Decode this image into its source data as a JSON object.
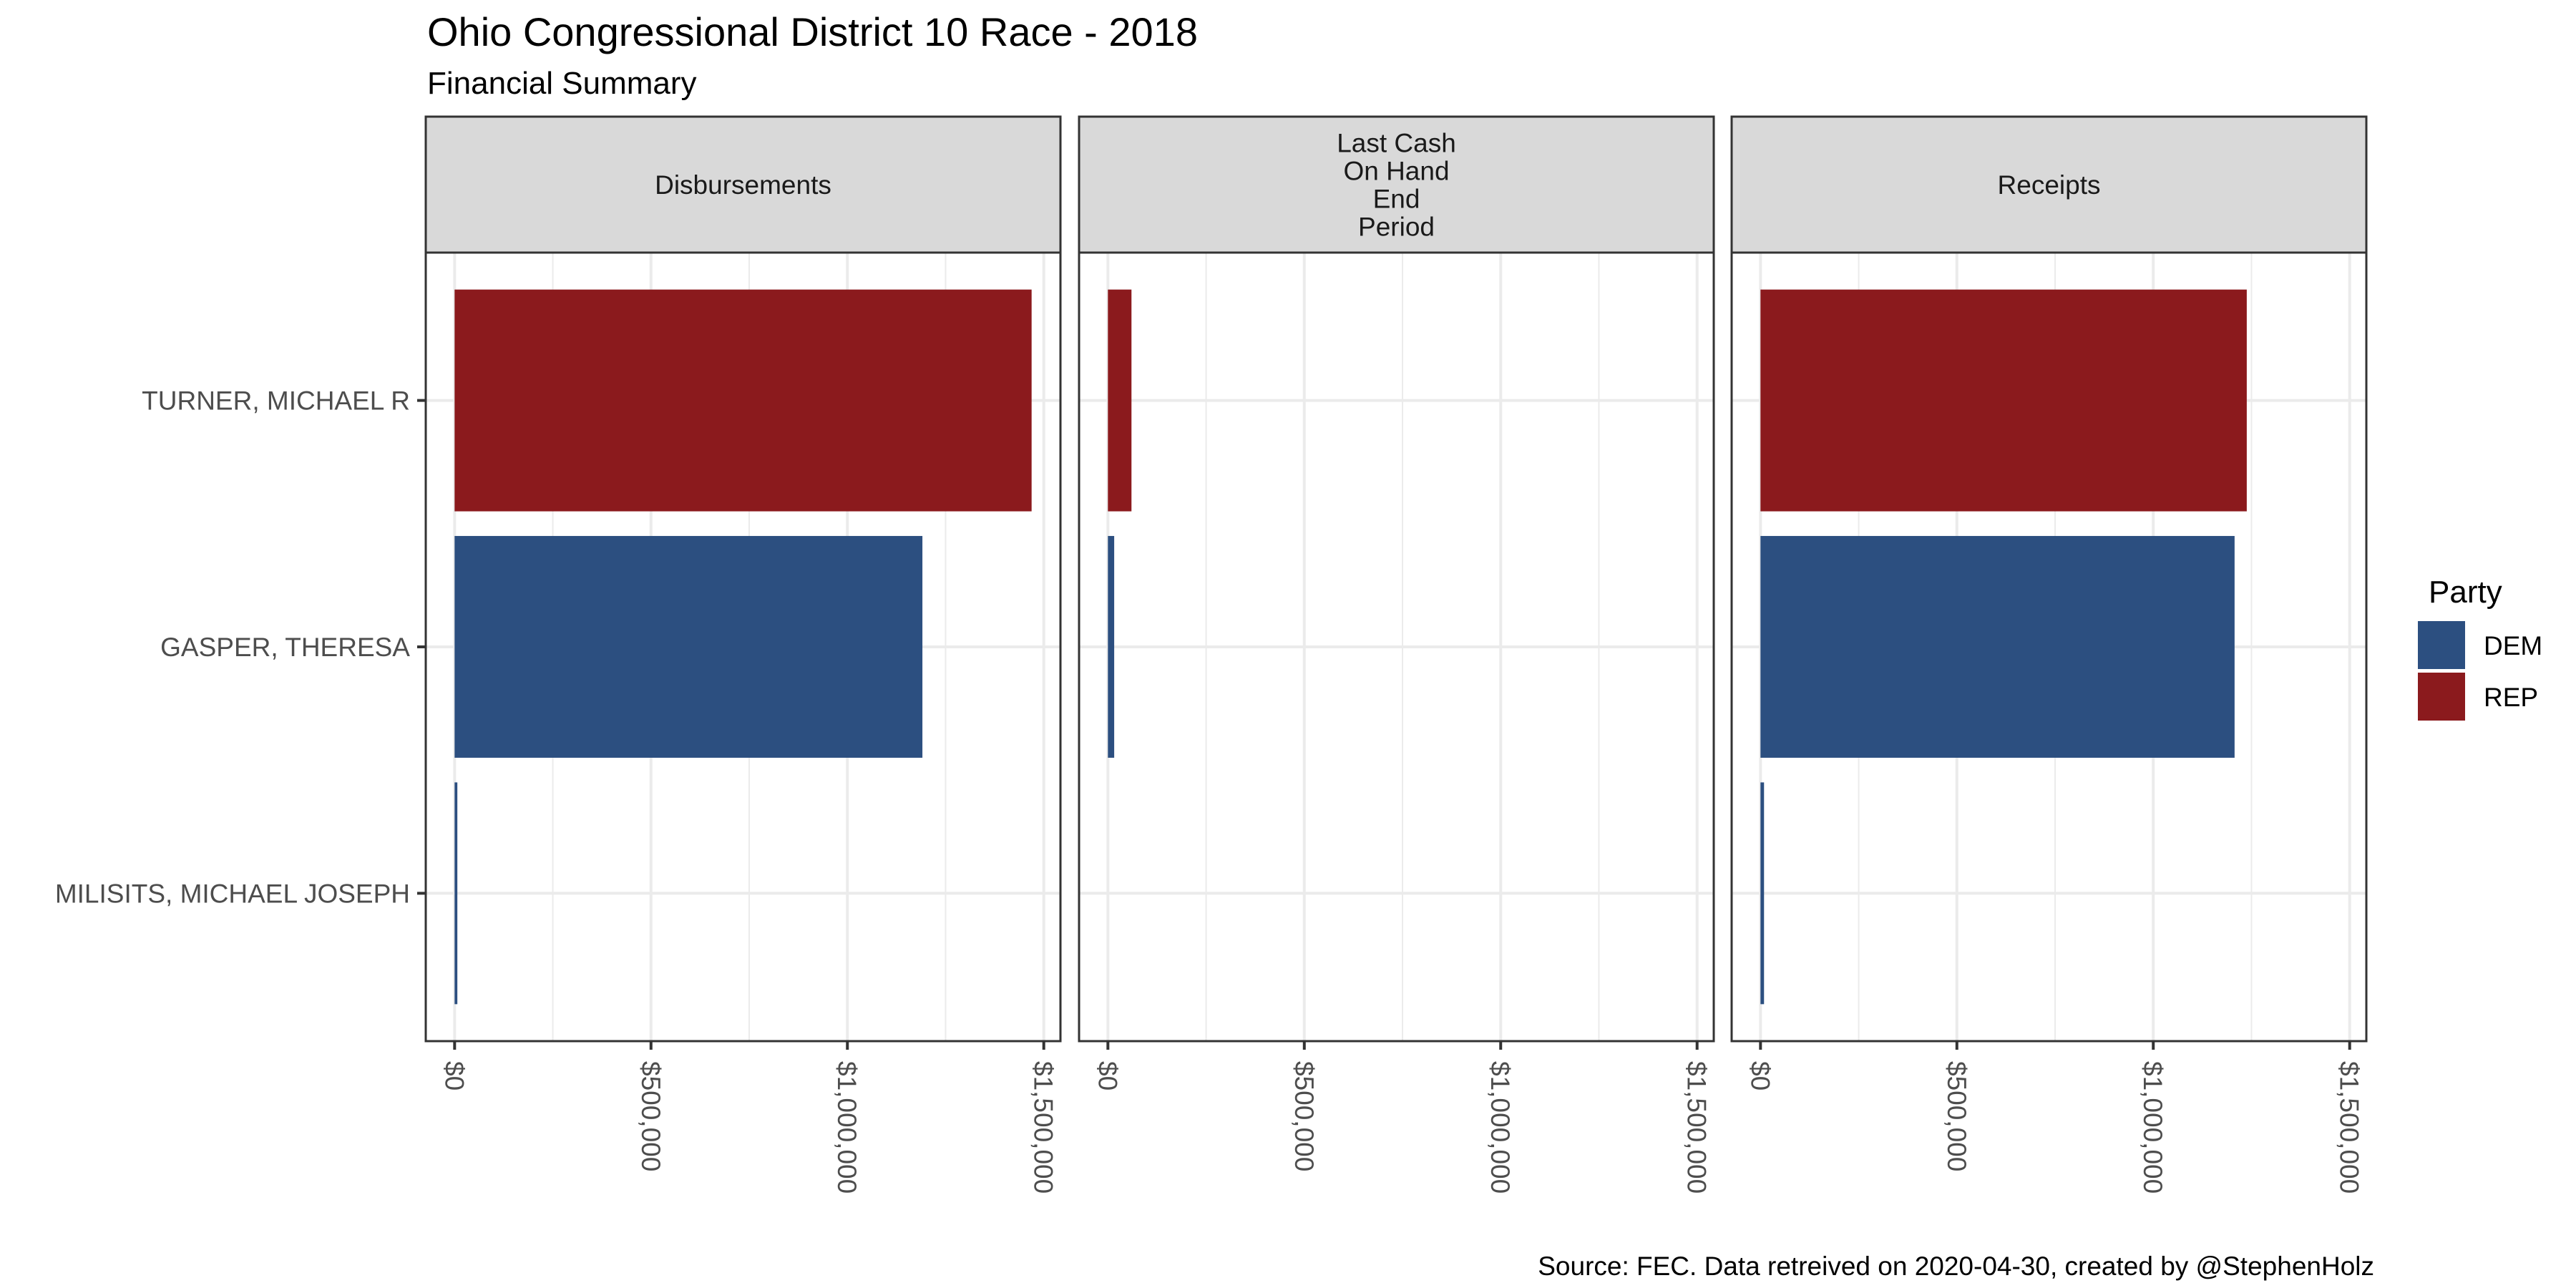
{
  "chart_data": {
    "type": "bar",
    "orientation": "horizontal",
    "title": "Ohio Congressional District 10 Race - 2018",
    "subtitle": "Financial Summary",
    "caption": "Source: FEC. Data retreived on 2020-04-30, created by @StephenHolz",
    "xlabel": "",
    "ylabel": "",
    "categories": [
      "TURNER, MICHAEL R",
      "GASPER, THERESA",
      "MILISITS, MICHAEL JOSEPH"
    ],
    "party": [
      "REP",
      "DEM",
      "DEM"
    ],
    "facets": [
      {
        "label_lines": [
          "Disbursements"
        ],
        "values": [
          1469000,
          1191000,
          7000
        ]
      },
      {
        "label_lines": [
          "Last Cash",
          "On Hand",
          "End",
          "Period"
        ],
        "values": [
          60000,
          16000,
          0
        ]
      },
      {
        "label_lines": [
          "Receipts"
        ],
        "values": [
          1238000,
          1207000,
          9000
        ]
      }
    ],
    "x_ticks": [
      0,
      500000,
      1000000,
      1500000
    ],
    "x_tick_labels": [
      "$0",
      "$500,000",
      "$1,000,000",
      "$1,500,000"
    ],
    "x_minor_ticks": [
      250000,
      750000,
      1250000
    ],
    "xlim": [
      -73450,
      1542450
    ],
    "grid": true,
    "legend": {
      "title": "Party",
      "position": "right",
      "entries": [
        {
          "label": "DEM",
          "color": "#2c4f80"
        },
        {
          "label": "REP",
          "color": "#8b1a1d"
        }
      ]
    },
    "colors": {
      "DEM": "#2c4f80",
      "REP": "#8b1a1d",
      "strip_background": "#d9d9d9",
      "panel_border": "#333333",
      "grid": "#ebebeb"
    }
  }
}
